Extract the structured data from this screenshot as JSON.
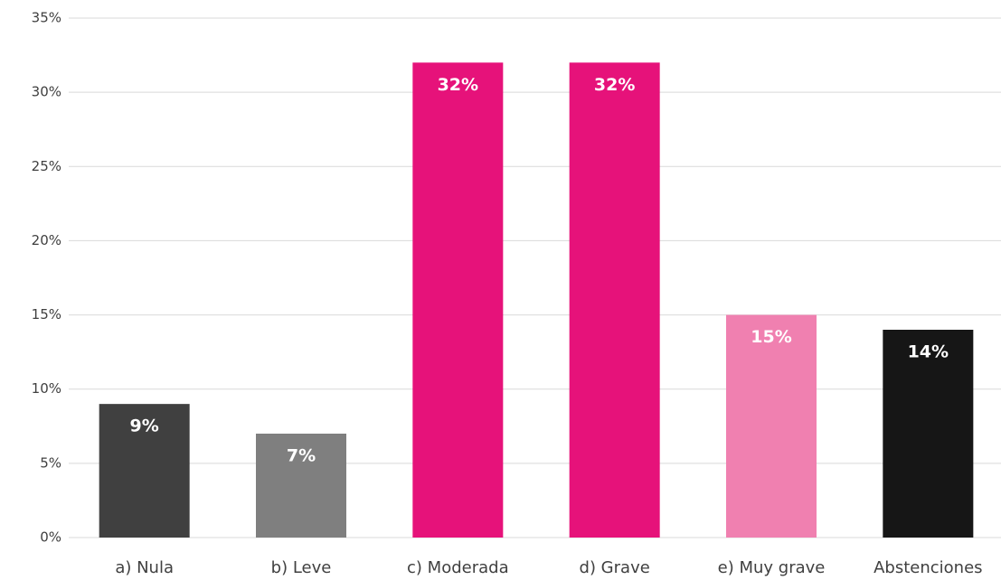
{
  "chart_data": {
    "type": "bar",
    "categories": [
      "a) Nula",
      "b) Leve",
      "c) Moderada",
      "d) Grave",
      "e) Muy grave",
      "Abstenciones"
    ],
    "values": [
      9,
      7,
      32,
      32,
      15,
      14
    ],
    "value_labels": [
      "9%",
      "7%",
      "32%",
      "32%",
      "15%",
      "14%"
    ],
    "colors": [
      "#404040",
      "#7f7f7f",
      "#e6127a",
      "#e6127a",
      "#f080b0",
      "#161616"
    ],
    "ylim": [
      0,
      35
    ],
    "yticks": [
      {
        "value": 0,
        "label": "0%"
      },
      {
        "value": 5,
        "label": "5%"
      },
      {
        "value": 10,
        "label": "10%"
      },
      {
        "value": 15,
        "label": "15%"
      },
      {
        "value": 20,
        "label": "20%"
      },
      {
        "value": 25,
        "label": "25%"
      },
      {
        "value": 30,
        "label": "30%"
      },
      {
        "value": 35,
        "label": "35%"
      }
    ],
    "grid": true
  }
}
